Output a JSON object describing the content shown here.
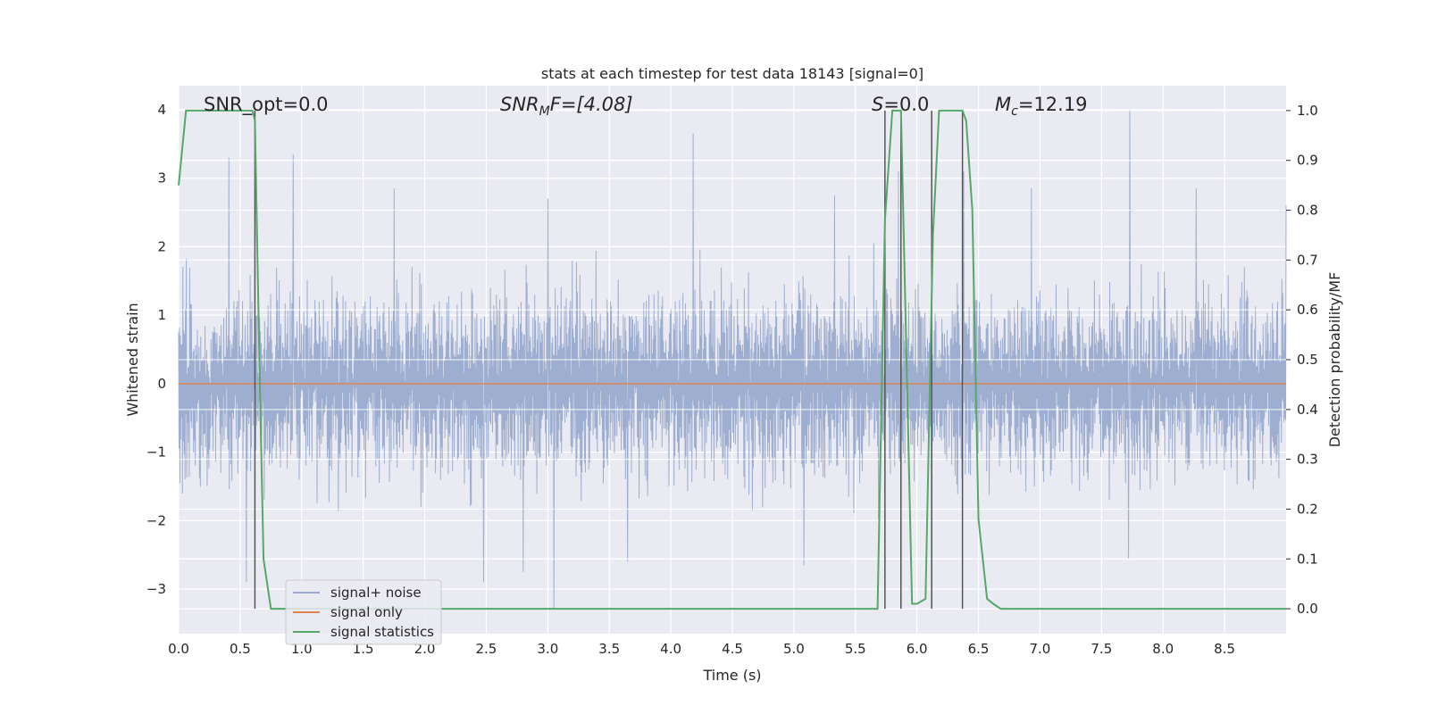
{
  "chart_data": {
    "type": "line",
    "title": "stats at each timestep for test data 18143 [signal=0]",
    "xlabel": "Time (s)",
    "ylabel_left": "Whitened strain",
    "ylabel_right": "Detection probability/MF",
    "xlim": [
      0.0,
      9.0
    ],
    "ylim_left": [
      -3.65,
      4.35
    ],
    "ylim_right": [
      -0.05,
      1.05
    ],
    "x_ticks": [
      "0.0",
      "0.5",
      "1.0",
      "1.5",
      "2.0",
      "2.5",
      "3.0",
      "3.5",
      "4.0",
      "4.5",
      "5.0",
      "5.5",
      "6.0",
      "6.5",
      "7.0",
      "7.5",
      "8.0",
      "8.5"
    ],
    "x_tick_values": [
      0.0,
      0.5,
      1.0,
      1.5,
      2.0,
      2.5,
      3.0,
      3.5,
      4.0,
      4.5,
      5.0,
      5.5,
      6.0,
      6.5,
      7.0,
      7.5,
      8.0,
      8.5
    ],
    "y_ticks_left": [
      "−3",
      "−2",
      "−1",
      "0",
      "1",
      "2",
      "3",
      "4"
    ],
    "y_tick_values_left": [
      -3,
      -2,
      -1,
      0,
      1,
      2,
      3,
      4
    ],
    "y_ticks_right": [
      "0.0",
      "0.1",
      "0.2",
      "0.3",
      "0.4",
      "0.5",
      "0.6",
      "0.7",
      "0.8",
      "0.9",
      "1.0"
    ],
    "y_tick_values_right": [
      0.0,
      0.1,
      0.2,
      0.3,
      0.4,
      0.5,
      0.6,
      0.7,
      0.8,
      0.9,
      1.0
    ],
    "grid": true,
    "legend_position": "lower-left",
    "annotations": {
      "snr_opt": "SNR_opt=0.0",
      "snr_mf_prefix": "SNR",
      "snr_mf_sub": "M",
      "snr_mf_suffix": "F=[4.08]",
      "s_prefix": "S",
      "s_suffix": "=0.0",
      "mc_prefix": "M",
      "mc_sub": "c",
      "mc_suffix": "=12.19"
    },
    "series": [
      {
        "name": "signal+ noise",
        "color": "#9aabcf",
        "axis": "left",
        "description_points": "dense whitened-strain noise, roughly within -2.4..2.5 with spikes",
        "spikes": [
          [
            0.41,
            3.3
          ],
          [
            0.93,
            3.35
          ],
          [
            1.75,
            2.85
          ],
          [
            3.0,
            2.7
          ],
          [
            4.18,
            3.65
          ],
          [
            5.33,
            2.75
          ],
          [
            5.85,
            3.1
          ],
          [
            6.38,
            3.1
          ],
          [
            6.93,
            2.85
          ],
          [
            7.73,
            4.0
          ],
          [
            8.27,
            2.85
          ],
          [
            9.0,
            2.6
          ],
          [
            0.55,
            -2.9
          ],
          [
            2.48,
            -2.9
          ],
          [
            3.05,
            -3.3
          ],
          [
            3.65,
            -2.6
          ],
          [
            5.08,
            -2.65
          ],
          [
            6.12,
            -2.65
          ],
          [
            7.72,
            -2.55
          ],
          [
            2.8,
            -2.75
          ]
        ]
      },
      {
        "name": "signal only",
        "color": "#dd8452",
        "axis": "left",
        "x": [
          0.0,
          9.0
        ],
        "y": [
          0.0,
          0.0
        ]
      },
      {
        "name": "signal statistics",
        "color": "#55a868",
        "axis": "right",
        "x": [
          0.0,
          0.06,
          0.12,
          0.2,
          0.6,
          0.62,
          0.66,
          0.69,
          0.75,
          0.8,
          5.6,
          5.68,
          5.74,
          5.8,
          5.87,
          5.92,
          5.96,
          6.0,
          6.07,
          6.13,
          6.18,
          6.2,
          6.3,
          6.37,
          6.4,
          6.45,
          6.5,
          6.57,
          6.62,
          6.68,
          6.75,
          8.6,
          8.65,
          9.0
        ],
        "y": [
          0.85,
          1.0,
          1.0,
          1.0,
          1.0,
          0.98,
          0.45,
          0.1,
          0.0,
          0.0,
          0.0,
          0.0,
          0.78,
          1.0,
          1.0,
          0.45,
          0.01,
          0.01,
          0.02,
          0.75,
          1.0,
          1.0,
          1.0,
          1.0,
          0.98,
          0.8,
          0.18,
          0.02,
          0.01,
          0.0,
          0.0,
          0.0,
          0.0,
          0.0
        ]
      }
    ],
    "vertical_markers_x": [
      0.62,
      5.74,
      5.87,
      6.12,
      6.37
    ]
  }
}
